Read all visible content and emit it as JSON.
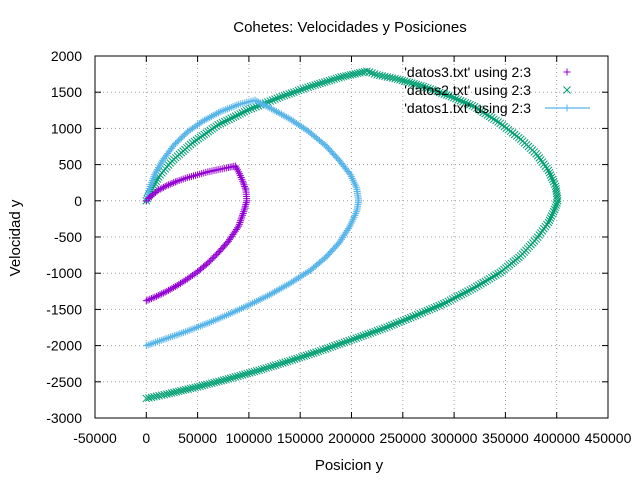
{
  "chart_data": {
    "type": "scatter",
    "title": "Cohetes: Velocidades y Posiciones",
    "xlabel": "Posicion y",
    "ylabel": "Velocidad y",
    "xlim": [
      -50000,
      450000
    ],
    "ylim": [
      -3000,
      2000
    ],
    "x_ticks": [
      "-50000",
      "0",
      "50000",
      "100000",
      "150000",
      "200000",
      "250000",
      "300000",
      "350000",
      "400000",
      "450000"
    ],
    "y_ticks": [
      "2000",
      "1500",
      "1000",
      "500",
      "0",
      "-500",
      "-1000",
      "-1500",
      "-2000",
      "-2500",
      "-3000"
    ],
    "grid": true,
    "legend_position": "top-right",
    "series": [
      {
        "name": "'datos3.txt' using 2:3",
        "marker": "plus",
        "color": "#9400d3",
        "points": [
          [
            0,
            -1380
          ],
          [
            10000,
            -1320
          ],
          [
            20000,
            -1250
          ],
          [
            30000,
            -1170
          ],
          [
            40000,
            -1080
          ],
          [
            50000,
            -980
          ],
          [
            60000,
            -860
          ],
          [
            70000,
            -720
          ],
          [
            80000,
            -560
          ],
          [
            90000,
            -350
          ],
          [
            95000,
            -150
          ],
          [
            98000,
            0
          ],
          [
            97000,
            150
          ],
          [
            94000,
            270
          ],
          [
            90000,
            400
          ],
          [
            87000,
            480
          ],
          [
            80000,
            460
          ],
          [
            70000,
            430
          ],
          [
            60000,
            400
          ],
          [
            50000,
            360
          ],
          [
            40000,
            320
          ],
          [
            30000,
            270
          ],
          [
            20000,
            210
          ],
          [
            12000,
            150
          ],
          [
            6000,
            80
          ],
          [
            2000,
            30
          ],
          [
            0,
            0
          ]
        ]
      },
      {
        "name": "'datos2.txt' using 2:3",
        "marker": "cross",
        "color": "#009e73",
        "points": [
          [
            0,
            -2730
          ],
          [
            20000,
            -2670
          ],
          [
            50000,
            -2570
          ],
          [
            80000,
            -2460
          ],
          [
            110000,
            -2340
          ],
          [
            140000,
            -2210
          ],
          [
            170000,
            -2070
          ],
          [
            200000,
            -1920
          ],
          [
            230000,
            -1770
          ],
          [
            260000,
            -1600
          ],
          [
            290000,
            -1420
          ],
          [
            320000,
            -1200
          ],
          [
            345000,
            -990
          ],
          [
            365000,
            -760
          ],
          [
            380000,
            -530
          ],
          [
            392000,
            -300
          ],
          [
            398000,
            -120
          ],
          [
            401000,
            0
          ],
          [
            399000,
            200
          ],
          [
            392000,
            420
          ],
          [
            380000,
            650
          ],
          [
            365000,
            850
          ],
          [
            345000,
            1070
          ],
          [
            320000,
            1300
          ],
          [
            295000,
            1450
          ],
          [
            270000,
            1580
          ],
          [
            245000,
            1680
          ],
          [
            225000,
            1740
          ],
          [
            215000,
            1790
          ],
          [
            190000,
            1710
          ],
          [
            160000,
            1580
          ],
          [
            130000,
            1430
          ],
          [
            100000,
            1260
          ],
          [
            70000,
            1050
          ],
          [
            45000,
            800
          ],
          [
            25000,
            550
          ],
          [
            12000,
            330
          ],
          [
            5000,
            150
          ],
          [
            1000,
            30
          ],
          [
            0,
            0
          ]
        ]
      },
      {
        "name": "'datos1.txt' using 2:3",
        "marker": "line-plus",
        "color": "#56b4e9",
        "points": [
          [
            0,
            -2000
          ],
          [
            20000,
            -1900
          ],
          [
            40000,
            -1800
          ],
          [
            60000,
            -1690
          ],
          [
            80000,
            -1570
          ],
          [
            100000,
            -1440
          ],
          [
            120000,
            -1300
          ],
          [
            140000,
            -1140
          ],
          [
            160000,
            -960
          ],
          [
            175000,
            -780
          ],
          [
            188000,
            -580
          ],
          [
            198000,
            -360
          ],
          [
            205000,
            -150
          ],
          [
            207000,
            0
          ],
          [
            205000,
            180
          ],
          [
            199000,
            360
          ],
          [
            188000,
            560
          ],
          [
            175000,
            760
          ],
          [
            158000,
            960
          ],
          [
            140000,
            1130
          ],
          [
            122000,
            1270
          ],
          [
            106000,
            1390
          ],
          [
            90000,
            1330
          ],
          [
            72000,
            1230
          ],
          [
            55000,
            1100
          ],
          [
            40000,
            950
          ],
          [
            27000,
            770
          ],
          [
            16000,
            560
          ],
          [
            8000,
            360
          ],
          [
            3000,
            170
          ],
          [
            0,
            0
          ]
        ]
      }
    ]
  }
}
